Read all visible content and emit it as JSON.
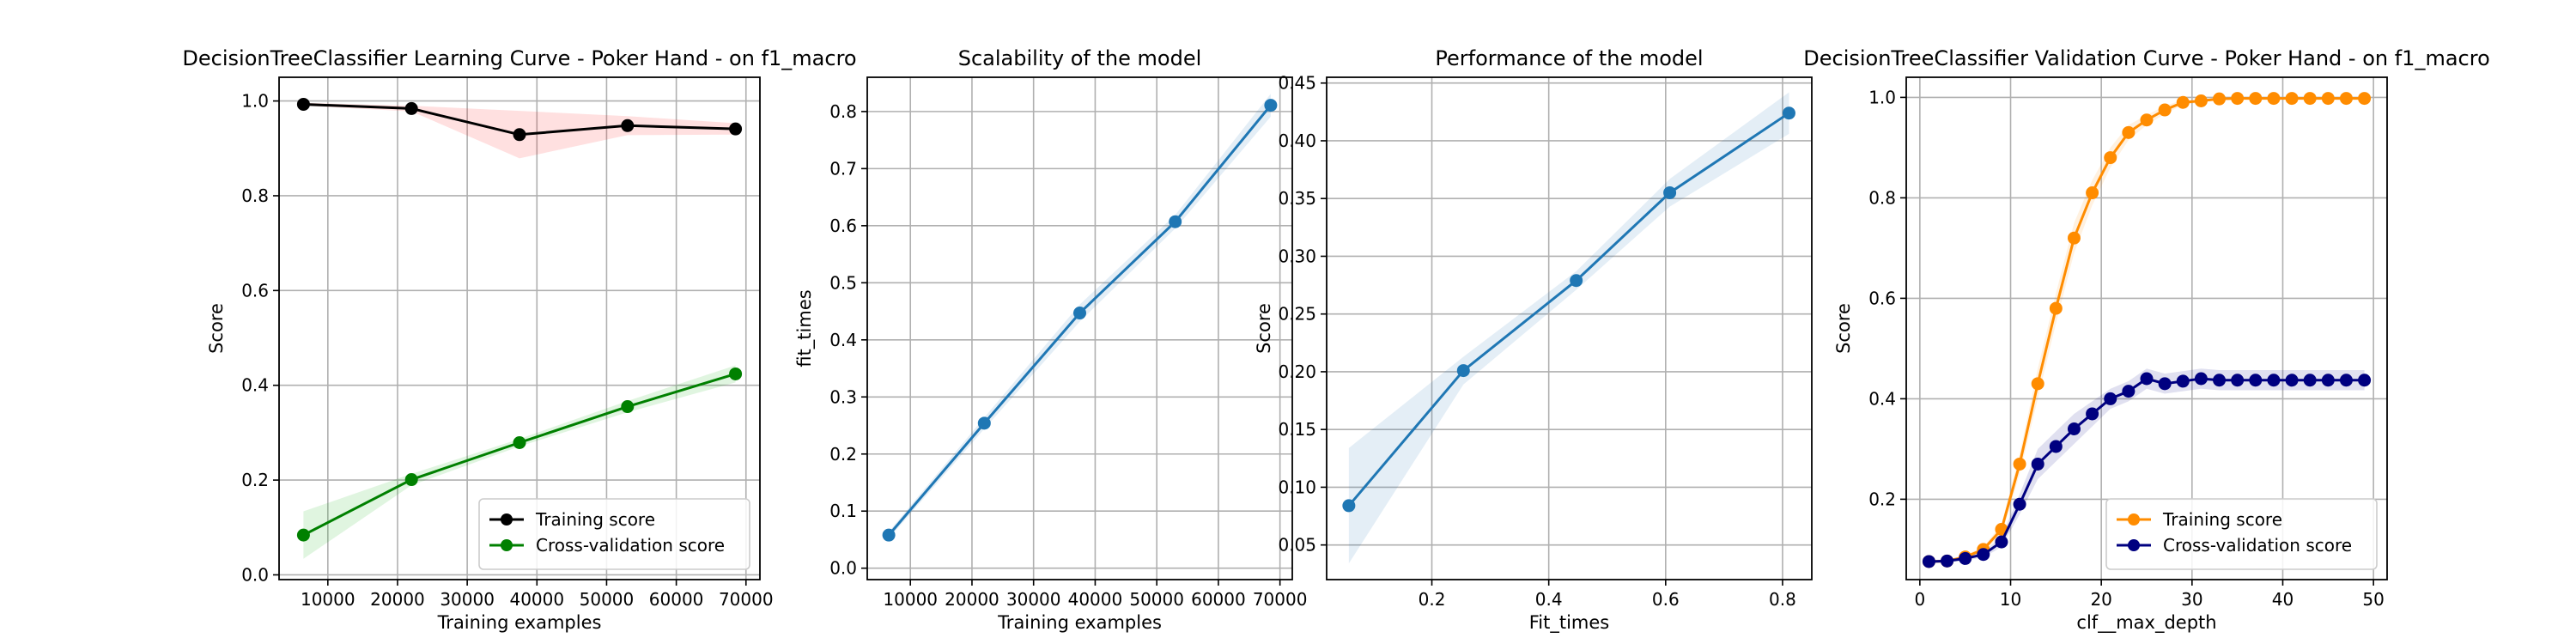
{
  "chart_data": [
    {
      "type": "line",
      "title": "DecisionTreeClassifier Learning Curve - Poker Hand - on f1_macro",
      "xlabel": "Training examples",
      "ylabel": "Score",
      "xlim": [
        3000,
        72000
      ],
      "ylim": [
        -0.01,
        1.05
      ],
      "xticks": [
        10000,
        20000,
        30000,
        40000,
        50000,
        60000,
        70000
      ],
      "yticks": [
        0.0,
        0.2,
        0.4,
        0.6,
        0.8,
        1.0
      ],
      "ytick_format": 1,
      "grid": true,
      "legend": "lower right",
      "x": [
        6500,
        22000,
        37500,
        53000,
        68500
      ],
      "series": [
        {
          "name": "Training score",
          "color": "#000000",
          "fill": "#ff0000",
          "values": [
            0.993,
            0.984,
            0.929,
            0.948,
            0.941
          ],
          "std": [
            0.003,
            0.006,
            0.05,
            0.02,
            0.012
          ]
        },
        {
          "name": "Cross-validation score",
          "color": "#008000",
          "fill": "#00aa00",
          "values": [
            0.084,
            0.201,
            0.279,
            0.355,
            0.424
          ],
          "std": [
            0.05,
            0.012,
            0.008,
            0.012,
            0.018
          ]
        }
      ]
    },
    {
      "type": "line",
      "title": "Scalability of the model",
      "xlabel": "Training examples",
      "ylabel": "fit_times",
      "xlim": [
        3000,
        72000
      ],
      "ylim": [
        -0.02,
        0.86
      ],
      "xticks": [
        10000,
        20000,
        30000,
        40000,
        50000,
        60000,
        70000
      ],
      "yticks": [
        0.0,
        0.1,
        0.2,
        0.3,
        0.4,
        0.5,
        0.6,
        0.7,
        0.8
      ],
      "ytick_format": 1,
      "grid": true,
      "x": [
        6500,
        22000,
        37500,
        53000,
        68500
      ],
      "series": [
        {
          "color": "#1f77b4",
          "fill": "#1f77b4",
          "values": [
            0.058,
            0.254,
            0.447,
            0.607,
            0.811
          ],
          "std": [
            0.006,
            0.01,
            0.015,
            0.012,
            0.02
          ]
        }
      ]
    },
    {
      "type": "line",
      "title": "Performance of the model",
      "xlabel": "Fit_times",
      "ylabel": "Score",
      "xlim": [
        0.02,
        0.85
      ],
      "ylim": [
        0.02,
        0.455
      ],
      "xticks": [
        0.2,
        0.4,
        0.6,
        0.8
      ],
      "yticks": [
        0.05,
        0.1,
        0.15,
        0.2,
        0.25,
        0.3,
        0.35,
        0.4,
        0.45
      ],
      "ytick_format": 2,
      "xtick_format": 1,
      "grid": true,
      "x": [
        0.058,
        0.254,
        0.447,
        0.607,
        0.811
      ],
      "series": [
        {
          "color": "#1f77b4",
          "fill": "#1f77b4",
          "values": [
            0.084,
            0.201,
            0.279,
            0.355,
            0.424
          ],
          "std": [
            0.05,
            0.012,
            0.008,
            0.012,
            0.018
          ]
        }
      ]
    },
    {
      "type": "line",
      "title": "DecisionTreeClassifier Validation Curve - Poker Hand - on f1_macro",
      "xlabel": "clf__max_depth",
      "ylabel": "Score",
      "xlim": [
        -1.5,
        51.5
      ],
      "ylim": [
        0.04,
        1.04
      ],
      "xticks": [
        0,
        10,
        20,
        30,
        40,
        50
      ],
      "yticks": [
        0.2,
        0.4,
        0.6,
        0.8,
        1.0
      ],
      "ytick_format": 1,
      "grid": true,
      "legend": "lower right",
      "x": [
        1,
        3,
        5,
        7,
        9,
        11,
        13,
        15,
        17,
        19,
        21,
        23,
        25,
        27,
        29,
        31,
        33,
        35,
        37,
        39,
        41,
        43,
        45,
        47,
        49
      ],
      "series": [
        {
          "name": "Training score",
          "color": "#ff8c00",
          "fill": "#ff8c00",
          "values": [
            0.076,
            0.077,
            0.085,
            0.1,
            0.14,
            0.27,
            0.43,
            0.58,
            0.72,
            0.81,
            0.88,
            0.93,
            0.955,
            0.975,
            0.99,
            0.993,
            0.997,
            0.998,
            0.998,
            0.998,
            0.998,
            0.998,
            0.998,
            0.998,
            0.998
          ],
          "std": [
            0.003,
            0.003,
            0.004,
            0.005,
            0.01,
            0.02,
            0.03,
            0.03,
            0.03,
            0.025,
            0.02,
            0.015,
            0.01,
            0.008,
            0.005,
            0.003,
            0.002,
            0.001,
            0.001,
            0.001,
            0.001,
            0.001,
            0.001,
            0.001,
            0.001
          ]
        },
        {
          "name": "Cross-validation score",
          "color": "#000080",
          "fill": "#000080",
          "values": [
            0.076,
            0.077,
            0.082,
            0.09,
            0.115,
            0.19,
            0.27,
            0.305,
            0.34,
            0.37,
            0.4,
            0.415,
            0.44,
            0.43,
            0.435,
            0.44,
            0.437,
            0.437,
            0.437,
            0.437,
            0.437,
            0.437,
            0.437,
            0.437,
            0.437
          ],
          "std": [
            0.003,
            0.003,
            0.004,
            0.006,
            0.01,
            0.02,
            0.03,
            0.03,
            0.03,
            0.025,
            0.02,
            0.02,
            0.02,
            0.02,
            0.02,
            0.02,
            0.02,
            0.02,
            0.02,
            0.02,
            0.02,
            0.02,
            0.02,
            0.02,
            0.02
          ]
        }
      ]
    }
  ]
}
